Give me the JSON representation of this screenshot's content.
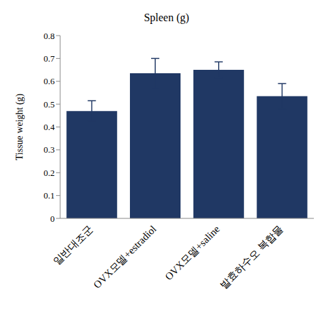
{
  "chart_data": {
    "type": "bar",
    "title": "Spleen (g)",
    "y_label": "Tissue weight (g)",
    "categories": [
      "일반대조군",
      "OVX모델+estradiol",
      "OVX모델+saline",
      "발효하수오 복합물"
    ],
    "values": [
      0.47,
      0.635,
      0.65,
      0.535
    ],
    "errors": [
      0.045,
      0.065,
      0.035,
      0.055
    ],
    "color": "#203864",
    "ylim": [
      0,
      0.8
    ],
    "yticks": [
      0,
      0.1,
      0.2,
      0.3,
      0.4,
      0.5,
      0.6,
      0.7,
      0.8
    ],
    "grid": false
  }
}
